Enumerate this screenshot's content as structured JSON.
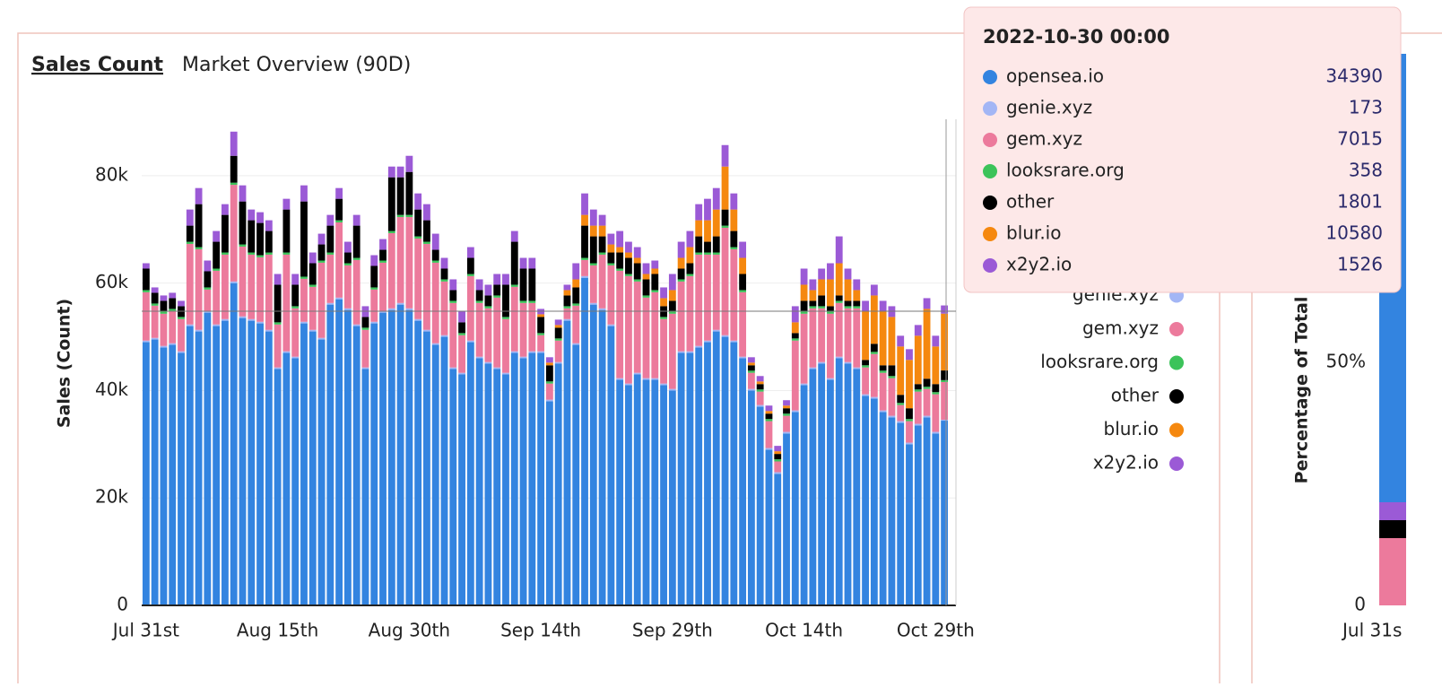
{
  "chart_data": {
    "type": "bar",
    "stacked": true,
    "title": "Sales Count",
    "subtitle": "Market Overview (90D)",
    "y_label": "Sales (Count)",
    "categories": [
      "Jul 31st",
      null,
      null,
      null,
      null,
      null,
      null,
      null,
      null,
      null,
      null,
      null,
      null,
      null,
      null,
      "Aug 15th",
      null,
      null,
      null,
      null,
      null,
      null,
      null,
      null,
      null,
      null,
      null,
      null,
      null,
      null,
      "Aug 30th",
      null,
      null,
      null,
      null,
      null,
      null,
      null,
      null,
      null,
      null,
      null,
      null,
      null,
      null,
      "Sep 14th",
      null,
      null,
      null,
      null,
      null,
      null,
      null,
      null,
      null,
      null,
      null,
      null,
      null,
      null,
      "Sep 29th",
      null,
      null,
      null,
      null,
      null,
      null,
      null,
      null,
      null,
      null,
      null,
      null,
      null,
      null,
      "Oct 14th",
      null,
      null,
      null,
      null,
      null,
      null,
      null,
      null,
      null,
      null,
      null,
      null,
      null,
      null,
      "Oct 29th",
      null
    ],
    "ylim": [
      0,
      90000
    ],
    "yticks": [
      0,
      {
        "value": 20000,
        "label": "20k"
      },
      {
        "value": 40000,
        "label": "40k"
      },
      {
        "value": 60000,
        "label": "60k"
      },
      {
        "value": 80000,
        "label": "80k"
      }
    ],
    "series": [
      {
        "name": "opensea.io",
        "color": "#3384e0",
        "values": [
          49000,
          49500,
          48000,
          48500,
          47000,
          52000,
          51000,
          54500,
          52000,
          53000,
          60000,
          53500,
          53000,
          52500,
          51000,
          44000,
          47000,
          46000,
          52500,
          51000,
          49500,
          56000,
          57000,
          55000,
          52000,
          44000,
          52500,
          54500,
          55000,
          56000,
          55000,
          53000,
          51000,
          48500,
          50000,
          44000,
          43000,
          49000,
          46000,
          45000,
          44000,
          43000,
          47000,
          46000,
          47000,
          47000,
          38000,
          45000,
          53000,
          48500,
          61000,
          56000,
          55000,
          52000,
          42000,
          41000,
          43000,
          42000,
          42000,
          41000,
          40000,
          47000,
          47000,
          48000,
          49000,
          51000,
          50000,
          49000,
          46000,
          40000,
          37000,
          29000,
          24500,
          32000,
          36000,
          41000,
          44000,
          45000,
          42000,
          46000,
          45000,
          44000,
          39000,
          38500,
          36000,
          35000,
          34000,
          30000,
          33500,
          35000,
          32000,
          34390
        ]
      },
      {
        "name": "genie.xyz",
        "color": "#a3b6f5",
        "values": [
          300,
          300,
          300,
          300,
          300,
          300,
          300,
          300,
          300,
          300,
          300,
          300,
          300,
          300,
          300,
          300,
          300,
          300,
          300,
          300,
          300,
          300,
          300,
          300,
          300,
          300,
          300,
          300,
          300,
          300,
          300,
          300,
          300,
          300,
          300,
          300,
          300,
          300,
          300,
          300,
          300,
          300,
          300,
          300,
          300,
          300,
          300,
          300,
          300,
          300,
          300,
          300,
          300,
          300,
          300,
          300,
          300,
          300,
          300,
          300,
          300,
          300,
          300,
          300,
          300,
          300,
          300,
          300,
          300,
          300,
          300,
          300,
          300,
          300,
          300,
          300,
          300,
          300,
          300,
          300,
          300,
          300,
          300,
          300,
          300,
          300,
          300,
          300,
          300,
          300,
          300,
          173
        ]
      },
      {
        "name": "gem.xyz",
        "color": "#ec7a9c",
        "values": [
          9000,
          6000,
          6000,
          6000,
          6000,
          15000,
          15000,
          4000,
          10000,
          12000,
          18000,
          13000,
          12000,
          12000,
          14000,
          8000,
          18000,
          9000,
          8000,
          8000,
          14000,
          9000,
          14000,
          8000,
          12000,
          7000,
          6000,
          9000,
          14000,
          16000,
          17000,
          15000,
          16000,
          15000,
          10000,
          12000,
          7000,
          12000,
          10000,
          10000,
          13000,
          10000,
          12000,
          10000,
          9000,
          3000,
          3000,
          4000,
          2000,
          7000,
          3000,
          7000,
          10000,
          11000,
          20000,
          20000,
          17000,
          15000,
          16000,
          12000,
          14000,
          13000,
          14000,
          17000,
          16000,
          14000,
          20000,
          17000,
          12000,
          3000,
          2500,
          5000,
          2000,
          3000,
          13000,
          13000,
          11000,
          10000,
          12000,
          10000,
          10000,
          11000,
          5000,
          8000,
          7000,
          7000,
          3000,
          4000,
          6000,
          5000,
          7000,
          7015
        ]
      },
      {
        "name": "looksrare.org",
        "color": "#3cc35a",
        "values": [
          400,
          400,
          400,
          400,
          400,
          400,
          400,
          400,
          400,
          400,
          400,
          400,
          400,
          400,
          400,
          400,
          400,
          400,
          400,
          400,
          400,
          400,
          400,
          400,
          400,
          400,
          400,
          400,
          400,
          400,
          400,
          400,
          400,
          400,
          400,
          400,
          400,
          400,
          400,
          400,
          400,
          400,
          400,
          400,
          400,
          400,
          400,
          400,
          400,
          400,
          400,
          400,
          400,
          400,
          400,
          400,
          400,
          400,
          400,
          400,
          400,
          400,
          400,
          400,
          400,
          400,
          400,
          400,
          400,
          400,
          400,
          400,
          400,
          400,
          400,
          400,
          400,
          400,
          400,
          400,
          400,
          400,
          400,
          400,
          400,
          400,
          400,
          400,
          400,
          400,
          400,
          358
        ]
      },
      {
        "name": "other",
        "color": "#000000",
        "values": [
          4000,
          2000,
          2000,
          2000,
          2000,
          3000,
          8000,
          3000,
          5000,
          7000,
          5000,
          8000,
          6000,
          6000,
          4000,
          7000,
          8000,
          4000,
          14000,
          4000,
          3000,
          5000,
          4000,
          2000,
          6000,
          2000,
          4000,
          2000,
          10000,
          7000,
          8000,
          5000,
          4000,
          2000,
          2000,
          2000,
          2000,
          3000,
          2000,
          2000,
          2000,
          6000,
          8000,
          6000,
          6000,
          3000,
          3000,
          2000,
          2000,
          3000,
          6000,
          5000,
          3000,
          2000,
          3000,
          3000,
          3000,
          3000,
          3000,
          2000,
          2000,
          2000,
          2000,
          3000,
          2000,
          3000,
          3000,
          3000,
          3000,
          1000,
          1000,
          1000,
          1000,
          1000,
          1000,
          2000,
          1000,
          2000,
          1000,
          1000,
          1000,
          1000,
          1000,
          1500,
          1000,
          2000,
          1500,
          2000,
          1000,
          1500,
          1500,
          1801
        ]
      },
      {
        "name": "blur.io",
        "color": "#f5880f",
        "values": [
          0,
          0,
          0,
          0,
          0,
          0,
          0,
          0,
          0,
          0,
          0,
          0,
          0,
          0,
          0,
          0,
          0,
          0,
          0,
          0,
          0,
          0,
          0,
          0,
          0,
          0,
          0,
          0,
          0,
          0,
          0,
          0,
          0,
          0,
          0,
          0,
          0,
          0,
          0,
          0,
          0,
          0,
          0,
          0,
          0,
          500,
          500,
          500,
          1000,
          1500,
          2000,
          2000,
          2000,
          1500,
          1000,
          1000,
          1000,
          1000,
          1000,
          1500,
          2000,
          2000,
          3000,
          3000,
          4000,
          5000,
          8000,
          4000,
          3000,
          500,
          500,
          500,
          500,
          500,
          2000,
          3000,
          2000,
          3000,
          5000,
          6000,
          4000,
          2000,
          9000,
          9000,
          10000,
          9000,
          9000,
          9000,
          9000,
          13000,
          7000,
          10580
        ]
      },
      {
        "name": "x2y2.io",
        "color": "#9b5ad6",
        "values": [
          1000,
          1000,
          1000,
          1000,
          1000,
          3000,
          3000,
          2000,
          2000,
          2000,
          4500,
          3000,
          2000,
          2000,
          2000,
          2000,
          2000,
          2000,
          3000,
          2000,
          2000,
          2000,
          2000,
          2000,
          2000,
          2000,
          2000,
          2000,
          2000,
          2000,
          3000,
          3000,
          3000,
          3000,
          2000,
          2000,
          2000,
          2000,
          2000,
          2000,
          2000,
          2000,
          2000,
          2000,
          2000,
          1000,
          1000,
          1000,
          1000,
          3000,
          4000,
          3000,
          2000,
          2000,
          3000,
          2000,
          2000,
          2000,
          1500,
          2000,
          3000,
          3000,
          3000,
          3000,
          4000,
          4000,
          4000,
          3000,
          3000,
          1000,
          1000,
          1000,
          1000,
          1000,
          3000,
          3000,
          2000,
          2000,
          3000,
          5000,
          2000,
          2000,
          2000,
          2000,
          2000,
          2000,
          2000,
          2000,
          2000,
          2000,
          2000,
          1526
        ]
      }
    ],
    "tooltip": {
      "title": "2022-10-30 00:00"
    }
  },
  "side_chart": {
    "y_label": "Percentage of Total",
    "tick_mid": "50%",
    "tick_zero": "0",
    "x_label": "Jul 31s"
  }
}
